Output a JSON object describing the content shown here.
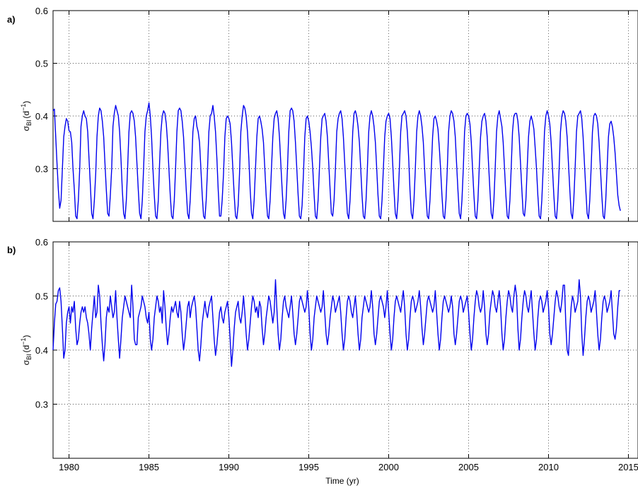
{
  "chart_data": [
    {
      "type": "line",
      "panel_label": "a)",
      "ylabel": {
        "sym": "σ",
        "sub": "BI",
        "unit_pre": "(d",
        "unit_sup": "−1",
        "unit_post": ")"
      },
      "xlim": [
        1979,
        2015.6
      ],
      "ylim": [
        0.2,
        0.6
      ],
      "xticks": [
        1980,
        1985,
        1990,
        1995,
        2000,
        2005,
        2010,
        2015
      ],
      "yticks": [
        0.3,
        0.4,
        0.5,
        0.6
      ],
      "grid": true,
      "series": [
        {
          "color": "#0000ee",
          "start_year": 1979.0,
          "step_years": 0.0833333,
          "values": [
            0.41,
            0.413,
            0.36,
            0.31,
            0.26,
            0.225,
            0.24,
            0.3,
            0.36,
            0.38,
            0.395,
            0.39,
            0.372,
            0.37,
            0.35,
            0.3,
            0.26,
            0.21,
            0.205,
            0.24,
            0.3,
            0.38,
            0.4,
            0.41,
            0.4,
            0.395,
            0.37,
            0.32,
            0.27,
            0.215,
            0.205,
            0.24,
            0.29,
            0.36,
            0.4,
            0.415,
            0.41,
            0.39,
            0.36,
            0.31,
            0.26,
            0.215,
            0.21,
            0.25,
            0.3,
            0.38,
            0.405,
            0.42,
            0.41,
            0.4,
            0.37,
            0.32,
            0.26,
            0.215,
            0.205,
            0.24,
            0.3,
            0.37,
            0.405,
            0.41,
            0.405,
            0.39,
            0.36,
            0.31,
            0.26,
            0.215,
            0.205,
            0.24,
            0.3,
            0.37,
            0.4,
            0.41,
            0.425,
            0.4,
            0.36,
            0.3,
            0.25,
            0.21,
            0.205,
            0.24,
            0.31,
            0.37,
            0.4,
            0.41,
            0.405,
            0.385,
            0.35,
            0.3,
            0.25,
            0.21,
            0.205,
            0.24,
            0.3,
            0.37,
            0.41,
            0.415,
            0.41,
            0.39,
            0.36,
            0.31,
            0.26,
            0.215,
            0.205,
            0.24,
            0.3,
            0.37,
            0.395,
            0.4,
            0.38,
            0.37,
            0.35,
            0.3,
            0.25,
            0.21,
            0.205,
            0.24,
            0.3,
            0.37,
            0.4,
            0.405,
            0.42,
            0.4,
            0.37,
            0.32,
            0.26,
            0.21,
            0.21,
            0.24,
            0.29,
            0.36,
            0.395,
            0.4,
            0.395,
            0.385,
            0.35,
            0.3,
            0.25,
            0.21,
            0.205,
            0.23,
            0.29,
            0.37,
            0.4,
            0.42,
            0.415,
            0.4,
            0.37,
            0.32,
            0.26,
            0.215,
            0.205,
            0.24,
            0.3,
            0.36,
            0.395,
            0.4,
            0.39,
            0.375,
            0.35,
            0.3,
            0.25,
            0.21,
            0.205,
            0.24,
            0.3,
            0.36,
            0.395,
            0.405,
            0.41,
            0.395,
            0.36,
            0.31,
            0.26,
            0.215,
            0.205,
            0.24,
            0.3,
            0.37,
            0.41,
            0.415,
            0.41,
            0.39,
            0.35,
            0.3,
            0.25,
            0.21,
            0.205,
            0.23,
            0.29,
            0.36,
            0.395,
            0.4,
            0.39,
            0.37,
            0.34,
            0.3,
            0.25,
            0.21,
            0.205,
            0.24,
            0.3,
            0.36,
            0.395,
            0.4,
            0.405,
            0.39,
            0.36,
            0.31,
            0.26,
            0.215,
            0.21,
            0.24,
            0.3,
            0.37,
            0.395,
            0.405,
            0.41,
            0.395,
            0.36,
            0.31,
            0.26,
            0.215,
            0.205,
            0.24,
            0.3,
            0.37,
            0.405,
            0.41,
            0.4,
            0.38,
            0.35,
            0.3,
            0.25,
            0.21,
            0.205,
            0.24,
            0.3,
            0.37,
            0.4,
            0.41,
            0.4,
            0.38,
            0.35,
            0.3,
            0.25,
            0.21,
            0.205,
            0.24,
            0.3,
            0.36,
            0.39,
            0.4,
            0.405,
            0.395,
            0.36,
            0.31,
            0.26,
            0.215,
            0.205,
            0.24,
            0.3,
            0.37,
            0.4,
            0.405,
            0.41,
            0.4,
            0.37,
            0.32,
            0.26,
            0.215,
            0.205,
            0.24,
            0.3,
            0.37,
            0.4,
            0.41,
            0.4,
            0.38,
            0.35,
            0.3,
            0.25,
            0.21,
            0.205,
            0.24,
            0.3,
            0.36,
            0.395,
            0.4,
            0.39,
            0.375,
            0.34,
            0.3,
            0.25,
            0.21,
            0.205,
            0.24,
            0.3,
            0.37,
            0.4,
            0.41,
            0.405,
            0.39,
            0.36,
            0.31,
            0.26,
            0.215,
            0.205,
            0.24,
            0.3,
            0.37,
            0.4,
            0.405,
            0.4,
            0.385,
            0.35,
            0.3,
            0.25,
            0.21,
            0.205,
            0.24,
            0.3,
            0.36,
            0.39,
            0.4,
            0.405,
            0.39,
            0.36,
            0.31,
            0.26,
            0.215,
            0.205,
            0.24,
            0.3,
            0.37,
            0.4,
            0.41,
            0.395,
            0.38,
            0.35,
            0.3,
            0.25,
            0.21,
            0.205,
            0.24,
            0.3,
            0.37,
            0.4,
            0.405,
            0.405,
            0.39,
            0.36,
            0.31,
            0.26,
            0.215,
            0.21,
            0.24,
            0.3,
            0.36,
            0.39,
            0.4,
            0.39,
            0.375,
            0.34,
            0.3,
            0.25,
            0.21,
            0.205,
            0.24,
            0.3,
            0.37,
            0.4,
            0.41,
            0.4,
            0.385,
            0.35,
            0.3,
            0.25,
            0.21,
            0.205,
            0.24,
            0.3,
            0.37,
            0.4,
            0.41,
            0.405,
            0.39,
            0.36,
            0.31,
            0.26,
            0.215,
            0.205,
            0.24,
            0.3,
            0.37,
            0.4,
            0.405,
            0.41,
            0.395,
            0.36,
            0.31,
            0.26,
            0.215,
            0.205,
            0.24,
            0.3,
            0.37,
            0.4,
            0.405,
            0.4,
            0.385,
            0.35,
            0.3,
            0.25,
            0.21,
            0.205,
            0.24,
            0.3,
            0.36,
            0.385,
            0.39,
            0.38,
            0.36,
            0.33,
            0.29,
            0.25,
            0.23,
            0.22
          ]
        }
      ]
    },
    {
      "type": "line",
      "panel_label": "b)",
      "ylabel": {
        "sym": "σ",
        "sub": "BI",
        "unit_pre": "(d",
        "unit_sup": "−1",
        "unit_post": ")"
      },
      "xlabel": "Time (yr)",
      "xlim": [
        1979,
        2015.6
      ],
      "ylim": [
        0.2,
        0.6
      ],
      "xticks": [
        1980,
        1985,
        1990,
        1995,
        2000,
        2005,
        2010,
        2015
      ],
      "xticklabels": [
        "1980",
        "1985",
        "1990",
        "1995",
        "2000",
        "2005",
        "2010",
        "2015"
      ],
      "yticks": [
        0.3,
        0.4,
        0.5,
        0.6
      ],
      "grid": true,
      "series": [
        {
          "color": "#0000ee",
          "start_year": 1979.0,
          "step_years": 0.0833333,
          "values": [
            0.4,
            0.45,
            0.485,
            0.49,
            0.51,
            0.515,
            0.49,
            0.44,
            0.385,
            0.4,
            0.45,
            0.47,
            0.48,
            0.45,
            0.48,
            0.47,
            0.49,
            0.44,
            0.41,
            0.42,
            0.45,
            0.47,
            0.48,
            0.47,
            0.48,
            0.46,
            0.45,
            0.43,
            0.4,
            0.44,
            0.47,
            0.5,
            0.46,
            0.47,
            0.52,
            0.5,
            0.45,
            0.41,
            0.38,
            0.41,
            0.46,
            0.48,
            0.47,
            0.5,
            0.48,
            0.46,
            0.47,
            0.51,
            0.46,
            0.42,
            0.385,
            0.42,
            0.46,
            0.48,
            0.5,
            0.49,
            0.48,
            0.47,
            0.46,
            0.52,
            0.48,
            0.42,
            0.41,
            0.41,
            0.46,
            0.47,
            0.48,
            0.5,
            0.49,
            0.48,
            0.46,
            0.45,
            0.47,
            0.42,
            0.4,
            0.42,
            0.46,
            0.48,
            0.5,
            0.49,
            0.47,
            0.48,
            0.45,
            0.51,
            0.48,
            0.44,
            0.41,
            0.43,
            0.46,
            0.48,
            0.47,
            0.48,
            0.49,
            0.47,
            0.46,
            0.49,
            0.47,
            0.43,
            0.4,
            0.42,
            0.45,
            0.48,
            0.49,
            0.46,
            0.48,
            0.49,
            0.5,
            0.48,
            0.44,
            0.4,
            0.38,
            0.41,
            0.45,
            0.47,
            0.49,
            0.47,
            0.46,
            0.48,
            0.49,
            0.5,
            0.46,
            0.42,
            0.39,
            0.41,
            0.44,
            0.47,
            0.48,
            0.46,
            0.45,
            0.47,
            0.48,
            0.49,
            0.46,
            0.42,
            0.37,
            0.4,
            0.44,
            0.47,
            0.48,
            0.49,
            0.46,
            0.45,
            0.47,
            0.5,
            0.47,
            0.43,
            0.4,
            0.42,
            0.45,
            0.48,
            0.5,
            0.49,
            0.47,
            0.48,
            0.46,
            0.49,
            0.48,
            0.44,
            0.41,
            0.43,
            0.46,
            0.48,
            0.5,
            0.49,
            0.47,
            0.45,
            0.47,
            0.53,
            0.48,
            0.43,
            0.4,
            0.42,
            0.46,
            0.49,
            0.5,
            0.48,
            0.47,
            0.46,
            0.48,
            0.5,
            0.47,
            0.43,
            0.41,
            0.43,
            0.46,
            0.49,
            0.5,
            0.49,
            0.48,
            0.47,
            0.48,
            0.51,
            0.48,
            0.43,
            0.4,
            0.42,
            0.46,
            0.48,
            0.5,
            0.49,
            0.48,
            0.47,
            0.48,
            0.51,
            0.47,
            0.43,
            0.41,
            0.43,
            0.46,
            0.48,
            0.5,
            0.49,
            0.47,
            0.48,
            0.49,
            0.5,
            0.47,
            0.43,
            0.4,
            0.42,
            0.46,
            0.49,
            0.5,
            0.49,
            0.47,
            0.46,
            0.48,
            0.5,
            0.47,
            0.43,
            0.4,
            0.42,
            0.46,
            0.48,
            0.5,
            0.49,
            0.48,
            0.47,
            0.48,
            0.51,
            0.48,
            0.43,
            0.41,
            0.43,
            0.46,
            0.49,
            0.5,
            0.49,
            0.48,
            0.46,
            0.48,
            0.51,
            0.47,
            0.43,
            0.4,
            0.42,
            0.46,
            0.49,
            0.5,
            0.49,
            0.48,
            0.47,
            0.49,
            0.51,
            0.48,
            0.43,
            0.4,
            0.42,
            0.46,
            0.49,
            0.5,
            0.49,
            0.47,
            0.48,
            0.49,
            0.51,
            0.48,
            0.44,
            0.41,
            0.43,
            0.46,
            0.49,
            0.5,
            0.49,
            0.48,
            0.47,
            0.48,
            0.51,
            0.47,
            0.43,
            0.4,
            0.42,
            0.46,
            0.49,
            0.5,
            0.49,
            0.48,
            0.47,
            0.48,
            0.5,
            0.48,
            0.43,
            0.41,
            0.43,
            0.46,
            0.49,
            0.5,
            0.49,
            0.47,
            0.48,
            0.49,
            0.5,
            0.47,
            0.43,
            0.4,
            0.42,
            0.46,
            0.49,
            0.51,
            0.5,
            0.48,
            0.47,
            0.48,
            0.51,
            0.48,
            0.43,
            0.41,
            0.43,
            0.47,
            0.49,
            0.51,
            0.5,
            0.48,
            0.47,
            0.49,
            0.51,
            0.48,
            0.43,
            0.4,
            0.42,
            0.46,
            0.49,
            0.51,
            0.5,
            0.48,
            0.47,
            0.5,
            0.52,
            0.5,
            0.44,
            0.4,
            0.42,
            0.46,
            0.49,
            0.51,
            0.5,
            0.48,
            0.47,
            0.49,
            0.51,
            0.47,
            0.43,
            0.4,
            0.42,
            0.46,
            0.49,
            0.5,
            0.49,
            0.47,
            0.48,
            0.49,
            0.51,
            0.48,
            0.43,
            0.41,
            0.43,
            0.46,
            0.49,
            0.51,
            0.5,
            0.48,
            0.47,
            0.49,
            0.52,
            0.52,
            0.45,
            0.4,
            0.39,
            0.44,
            0.48,
            0.5,
            0.49,
            0.47,
            0.48,
            0.49,
            0.53,
            0.5,
            0.43,
            0.39,
            0.42,
            0.46,
            0.49,
            0.5,
            0.49,
            0.47,
            0.48,
            0.49,
            0.51,
            0.47,
            0.43,
            0.4,
            0.42,
            0.46,
            0.49,
            0.5,
            0.49,
            0.47,
            0.48,
            0.49,
            0.51,
            0.47,
            0.43,
            0.42,
            0.44,
            0.48,
            0.51,
            0.51
          ]
        }
      ]
    }
  ]
}
